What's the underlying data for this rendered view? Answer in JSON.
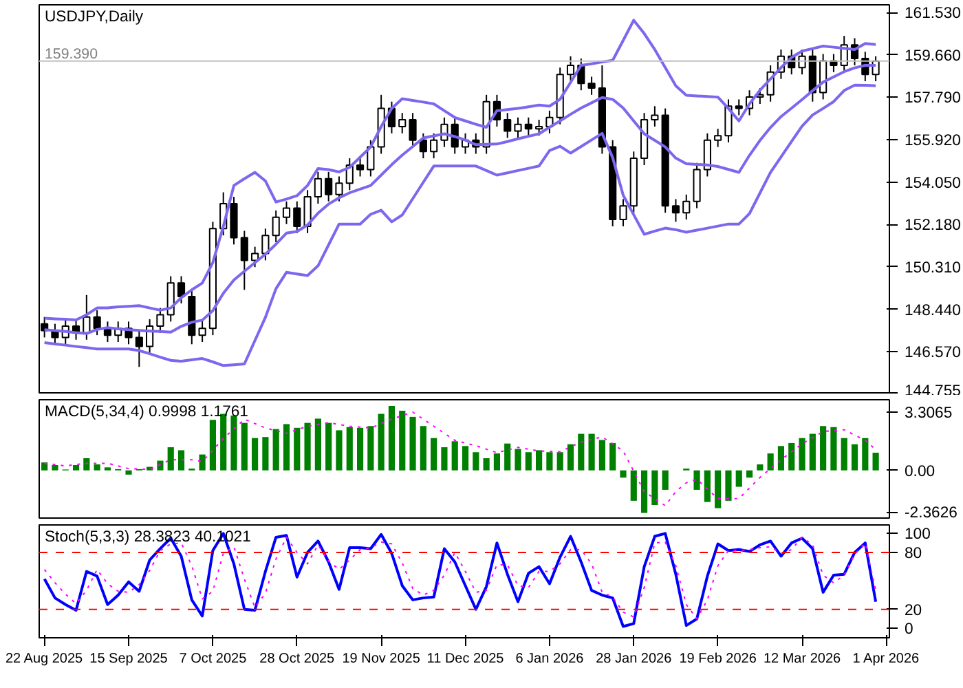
{
  "chart_data": [
    {
      "type": "candlestick",
      "title": "USDJPY,Daily",
      "tick_labels": "y",
      "ylim": [
        144.755,
        161.87
      ],
      "categories": [
        null,
        null,
        null,
        null,
        null,
        null,
        null,
        null,
        null,
        null,
        null,
        null,
        null,
        null,
        null,
        null,
        null,
        null,
        null,
        null,
        null,
        null,
        null,
        null,
        null,
        null,
        null,
        null,
        null,
        null,
        null,
        null,
        null,
        null,
        null,
        null,
        null,
        null,
        null,
        null,
        null,
        null,
        null,
        null,
        null,
        null,
        null,
        null,
        null,
        null,
        null,
        null,
        null,
        null,
        null,
        null,
        null,
        null,
        null,
        null,
        null,
        null,
        null,
        null,
        null,
        null,
        null,
        null,
        null,
        null,
        null,
        null,
        null,
        null,
        null,
        null,
        null,
        null,
        null,
        null,
        null
      ],
      "yticks": [
        {
          "value": 161.53,
          "label": "161.530"
        },
        {
          "value": 159.66,
          "label": "159.660"
        },
        {
          "value": 157.79,
          "label": "157.790"
        },
        {
          "value": 155.92,
          "label": "155.920"
        },
        {
          "value": 154.05,
          "label": "154.050"
        },
        {
          "value": 152.18,
          "label": "152.180"
        },
        {
          "value": 150.31,
          "label": "150.310"
        },
        {
          "value": 148.44,
          "label": "148.440"
        },
        {
          "value": 146.57,
          "label": "146.570"
        },
        {
          "value": 144.755,
          "label": "144.755"
        }
      ],
      "ohlc": [
        [
          147.8,
          148.1,
          147.2,
          147.5
        ],
        [
          147.5,
          147.8,
          146.9,
          147.2
        ],
        [
          147.2,
          148.0,
          146.9,
          147.7
        ],
        [
          147.7,
          148.0,
          147.1,
          147.4
        ],
        [
          147.4,
          149.07,
          147.1,
          148.1
        ],
        [
          148.1,
          148.4,
          147.3,
          147.6
        ],
        [
          147.6,
          147.9,
          147.0,
          147.3
        ],
        [
          147.3,
          147.9,
          147.0,
          147.6
        ],
        [
          147.6,
          147.9,
          146.9,
          147.2
        ],
        [
          147.2,
          147.5,
          145.9,
          146.8
        ],
        [
          146.8,
          148.0,
          146.5,
          147.7
        ],
        [
          147.7,
          148.5,
          147.4,
          148.2
        ],
        [
          148.2,
          149.9,
          147.9,
          149.6
        ],
        [
          149.6,
          149.9,
          148.7,
          149.0
        ],
        [
          149.0,
          149.3,
          146.9,
          147.3
        ],
        [
          147.3,
          148.0,
          147.0,
          147.6
        ],
        [
          147.6,
          152.3,
          147.3,
          152.0
        ],
        [
          152.0,
          153.6,
          151.7,
          153.1
        ],
        [
          153.1,
          153.4,
          151.3,
          151.6
        ],
        [
          151.6,
          151.9,
          149.3,
          150.6
        ],
        [
          150.6,
          151.2,
          150.3,
          150.9
        ],
        [
          150.9,
          152.0,
          150.6,
          151.7
        ],
        [
          151.7,
          152.8,
          151.4,
          152.5
        ],
        [
          152.5,
          153.2,
          152.2,
          152.9
        ],
        [
          152.9,
          153.2,
          151.8,
          152.1
        ],
        [
          152.1,
          153.7,
          151.8,
          153.4
        ],
        [
          153.4,
          154.5,
          153.1,
          154.2
        ],
        [
          154.2,
          154.5,
          153.2,
          153.5
        ],
        [
          153.5,
          154.3,
          153.2,
          154.0
        ],
        [
          154.0,
          155.1,
          153.7,
          154.8
        ],
        [
          154.8,
          155.1,
          154.3,
          154.6
        ],
        [
          154.6,
          155.9,
          154.3,
          155.6
        ],
        [
          155.6,
          157.9,
          155.3,
          157.3
        ],
        [
          157.3,
          157.6,
          156.2,
          156.5
        ],
        [
          156.5,
          157.1,
          156.2,
          156.8
        ],
        [
          156.8,
          157.1,
          155.6,
          155.9
        ],
        [
          155.9,
          156.2,
          155.1,
          155.4
        ],
        [
          155.4,
          156.2,
          155.1,
          155.9
        ],
        [
          155.9,
          156.9,
          155.6,
          156.6
        ],
        [
          156.6,
          156.9,
          155.3,
          155.6
        ],
        [
          155.6,
          156.2,
          155.3,
          155.9
        ],
        [
          155.9,
          156.2,
          155.3,
          155.6
        ],
        [
          155.6,
          157.9,
          155.3,
          157.6
        ],
        [
          157.6,
          157.9,
          156.5,
          156.8
        ],
        [
          156.8,
          157.1,
          156.0,
          156.3
        ],
        [
          156.3,
          156.9,
          156.0,
          156.6
        ],
        [
          156.6,
          156.9,
          156.1,
          156.4
        ],
        [
          156.4,
          156.8,
          156.1,
          156.5
        ],
        [
          156.5,
          157.2,
          156.2,
          156.9
        ],
        [
          156.9,
          159.1,
          156.6,
          158.8
        ],
        [
          158.8,
          159.6,
          158.5,
          159.2
        ],
        [
          159.2,
          159.5,
          158.1,
          158.4
        ],
        [
          158.4,
          158.7,
          157.9,
          158.2
        ],
        [
          158.2,
          159.2,
          155.3,
          155.6
        ],
        [
          155.6,
          155.9,
          152.1,
          152.4
        ],
        [
          152.4,
          153.3,
          152.1,
          153.0
        ],
        [
          153.0,
          155.4,
          152.7,
          155.1
        ],
        [
          155.1,
          157.1,
          154.8,
          156.8
        ],
        [
          156.8,
          157.4,
          156.5,
          157.0
        ],
        [
          157.0,
          157.3,
          152.7,
          153.0
        ],
        [
          153.0,
          153.3,
          152.3,
          152.7
        ],
        [
          152.7,
          153.5,
          152.4,
          153.2
        ],
        [
          153.2,
          154.9,
          152.9,
          154.6
        ],
        [
          154.6,
          156.2,
          154.3,
          155.9
        ],
        [
          155.9,
          156.4,
          155.6,
          156.1
        ],
        [
          156.1,
          157.7,
          155.8,
          157.4
        ],
        [
          157.4,
          157.7,
          157.0,
          157.3
        ],
        [
          157.3,
          158.1,
          157.0,
          157.8
        ],
        [
          157.8,
          158.2,
          157.5,
          157.9
        ],
        [
          157.9,
          159.2,
          157.6,
          158.9
        ],
        [
          158.9,
          159.9,
          158.6,
          159.6
        ],
        [
          159.6,
          159.9,
          158.8,
          159.1
        ],
        [
          159.1,
          159.9,
          158.8,
          159.6
        ],
        [
          159.6,
          159.9,
          157.6,
          158.0
        ],
        [
          158.0,
          159.7,
          157.7,
          159.4
        ],
        [
          159.4,
          159.7,
          158.9,
          159.2
        ],
        [
          159.2,
          160.5,
          158.9,
          160.1
        ],
        [
          160.1,
          160.4,
          159.2,
          159.5
        ],
        [
          159.5,
          159.8,
          158.5,
          158.8
        ],
        [
          158.8,
          159.6,
          158.5,
          159.39
        ],
        null
      ],
      "ref_lines": [
        {
          "axis": "y",
          "value": 159.39,
          "label": "159.390",
          "color": "#c0c0c0",
          "line_style": "solid"
        }
      ],
      "series": [
        {
          "type": "line",
          "color": "#7b68ee",
          "values": [
            148.05,
            148.02,
            148.0,
            147.97,
            148.2,
            148.5,
            148.5,
            148.55,
            148.57,
            148.6,
            148.5,
            148.4,
            148.5,
            148.95,
            149.3,
            149.6,
            150.5,
            152.1,
            153.9,
            154.2,
            154.48,
            154.1,
            153.17,
            153.3,
            153.45,
            153.9,
            154.65,
            154.6,
            154.5,
            154.7,
            155.15,
            155.6,
            156.5,
            157.3,
            157.73,
            157.65,
            157.58,
            157.5,
            157.2,
            156.9,
            156.75,
            156.6,
            156.47,
            157.2,
            157.25,
            157.3,
            157.37,
            157.45,
            157.4,
            157.7,
            158.45,
            159.2,
            159.27,
            159.35,
            159.42,
            160.3,
            161.19,
            160.6,
            159.9,
            159.1,
            158.3,
            157.88,
            157.85,
            157.83,
            157.8,
            157.3,
            156.75,
            157.5,
            158.1,
            158.6,
            159.1,
            159.55,
            159.83,
            159.94,
            160.05,
            160.0,
            159.95,
            159.9,
            160.16,
            160.12,
            null
          ]
        },
        {
          "type": "line",
          "color": "#7b68ee",
          "values": [
            147.54,
            147.5,
            147.46,
            147.41,
            147.37,
            147.55,
            147.63,
            147.58,
            147.54,
            147.51,
            147.48,
            147.46,
            147.43,
            147.69,
            147.87,
            147.96,
            148.38,
            149.15,
            149.73,
            150.12,
            150.5,
            150.87,
            151.31,
            151.8,
            151.87,
            152.16,
            152.68,
            153.08,
            153.36,
            153.58,
            153.74,
            153.9,
            154.36,
            154.82,
            155.24,
            155.62,
            156.0,
            156.09,
            156.18,
            156.06,
            155.9,
            155.7,
            155.72,
            155.73,
            155.84,
            155.96,
            156.07,
            156.18,
            156.47,
            156.75,
            157.04,
            157.32,
            157.55,
            157.78,
            157.7,
            157.32,
            156.75,
            156.18,
            155.89,
            155.6,
            155.11,
            154.86,
            154.83,
            154.81,
            154.74,
            154.61,
            154.48,
            155.23,
            155.89,
            156.46,
            156.94,
            157.31,
            157.69,
            158.08,
            158.46,
            158.69,
            158.92,
            159.09,
            159.2,
            159.2,
            null
          ]
        },
        {
          "type": "line",
          "color": "#7b68ee",
          "values": [
            146.97,
            146.91,
            146.86,
            146.8,
            146.75,
            146.69,
            146.69,
            146.69,
            146.69,
            146.62,
            146.48,
            146.33,
            146.19,
            146.15,
            146.21,
            146.27,
            146.12,
            145.96,
            145.99,
            146.03,
            147.06,
            148.09,
            149.35,
            150.07,
            150.0,
            149.93,
            150.36,
            151.28,
            152.2,
            152.2,
            152.2,
            152.63,
            152.81,
            152.3,
            152.6,
            153.32,
            154.04,
            154.76,
            154.76,
            154.76,
            154.76,
            154.76,
            154.56,
            154.36,
            154.46,
            154.56,
            154.66,
            154.76,
            155.44,
            155.63,
            155.33,
            155.62,
            155.91,
            156.2,
            155.13,
            153.47,
            152.61,
            151.75,
            151.89,
            152.02,
            151.95,
            151.84,
            151.93,
            152.02,
            152.11,
            152.2,
            152.2,
            152.66,
            153.57,
            154.48,
            155.16,
            155.84,
            156.52,
            157.01,
            157.3,
            157.6,
            158.09,
            158.33,
            158.32,
            158.3,
            null
          ]
        }
      ]
    },
    {
      "type": "bar",
      "title": "MACD(5,34,4) 0.9998 1.1761",
      "tick_labels": "y",
      "ylim": [
        -2.7,
        4.0
      ],
      "categories": [
        null,
        null,
        null,
        null,
        null,
        null,
        null,
        null,
        null,
        null,
        null,
        null,
        null,
        null,
        null,
        null,
        null,
        null,
        null,
        null,
        null,
        null,
        null,
        null,
        null,
        null,
        null,
        null,
        null,
        null,
        null,
        null,
        null,
        null,
        null,
        null,
        null,
        null,
        null,
        null,
        null,
        null,
        null,
        null,
        null,
        null,
        null,
        null,
        null,
        null,
        null,
        null,
        null,
        null,
        null,
        null,
        null,
        null,
        null,
        null,
        null,
        null,
        null,
        null,
        null,
        null,
        null,
        null,
        null,
        null,
        null,
        null,
        null,
        null,
        null,
        null,
        null,
        null,
        null,
        null,
        null
      ],
      "yticks": [
        {
          "value": 3.3065,
          "label": "3.3065"
        },
        {
          "value": 0,
          "label": "0.00"
        },
        {
          "value": -2.3626,
          "label": "-2.3626"
        }
      ],
      "series": [
        {
          "type": "bar",
          "color": "#008000",
          "values": [
            0.45,
            0.3,
            0.05,
            0.3,
            0.69,
            0.34,
            0.17,
            0.07,
            -0.24,
            0.07,
            0.2,
            0.55,
            1.31,
            1.14,
            0.1,
            0.9,
            2.86,
            3.2,
            3.1,
            2.69,
            1.83,
            1.89,
            2.34,
            2.62,
            2.41,
            2.69,
            2.93,
            2.69,
            2.27,
            2.45,
            2.41,
            2.51,
            3.2,
            3.65,
            3.38,
            3.03,
            2.51,
            1.83,
            1.31,
            1.65,
            1.38,
            1.03,
            0.69,
            0.96,
            1.52,
            1.21,
            1.03,
            1.14,
            1.03,
            1.03,
            1.48,
            2.07,
            2.07,
            1.72,
            1.55,
            -0.41,
            -1.72,
            -2.41,
            -1.96,
            -1.1,
            0.0,
            0.1,
            -1.1,
            -1.79,
            -2.14,
            -1.72,
            -0.93,
            -0.41,
            0.34,
            0.96,
            1.38,
            1.55,
            1.83,
            2.07,
            2.51,
            2.45,
            1.83,
            1.48,
            1.83,
            1.0,
            null
          ]
        },
        {
          "type": "line",
          "color": "#ff00ff",
          "line_style": "dotted",
          "values": [
            0.4,
            0.33,
            0.25,
            0.33,
            0.4,
            0.4,
            0.4,
            0.25,
            0.1,
            0.08,
            0.05,
            0.33,
            0.6,
            0.6,
            0.6,
            0.5,
            1.15,
            1.8,
            2.35,
            2.9,
            2.65,
            2.4,
            2.25,
            2.1,
            2.3,
            2.5,
            2.6,
            2.7,
            2.6,
            2.5,
            2.45,
            2.4,
            2.65,
            2.9,
            3.1,
            3.3,
            2.9,
            2.5,
            2.1,
            1.7,
            1.55,
            1.4,
            1.2,
            1.0,
            1.15,
            1.3,
            1.2,
            1.1,
            1.08,
            1.05,
            1.33,
            1.6,
            1.75,
            1.9,
            1.5,
            1.1,
            -0.05,
            -1.2,
            -1.6,
            -2.0,
            -1.2,
            -0.7,
            -0.5,
            -1.05,
            -1.6,
            -1.6,
            -1.6,
            -1.0,
            -0.4,
            0.1,
            0.6,
            1.05,
            1.5,
            1.85,
            2.2,
            2.25,
            2.3,
            2.0,
            1.7,
            1.18,
            null
          ]
        }
      ]
    },
    {
      "type": "line",
      "title": "Stoch(5,3,3) 28.3823 40.1021",
      "ylim": [
        -10,
        109
      ],
      "yticks": [
        100,
        80,
        20,
        0
      ],
      "categories": [
        "22 Aug 2025",
        null,
        null,
        null,
        null,
        null,
        null,
        null,
        "15 Sep 2025",
        null,
        null,
        null,
        null,
        null,
        null,
        null,
        "7 Oct 2025",
        null,
        null,
        null,
        null,
        null,
        null,
        null,
        "28 Oct 2025",
        null,
        null,
        null,
        null,
        null,
        null,
        null,
        "19 Nov 2025",
        null,
        null,
        null,
        null,
        null,
        null,
        null,
        "11 Dec 2025",
        null,
        null,
        null,
        null,
        null,
        null,
        null,
        "6 Jan 2026",
        null,
        null,
        null,
        null,
        null,
        null,
        null,
        "28 Jan 2026",
        null,
        null,
        null,
        null,
        null,
        null,
        null,
        "19 Feb 2026",
        null,
        null,
        null,
        null,
        null,
        null,
        null,
        "12 Mar 2026",
        null,
        null,
        null,
        null,
        null,
        null,
        null,
        "1 Apr 2026"
      ],
      "ref_lines": [
        {
          "axis": "y",
          "value": 80,
          "color": "#ff0000",
          "line_style": "dashed"
        },
        {
          "axis": "y",
          "value": 20,
          "color": "#ff0000",
          "line_style": "dashed"
        }
      ],
      "series": [
        {
          "type": "line",
          "color": "#0000ff",
          "line_style": "solid",
          "values": [
            52,
            32,
            25,
            19,
            60,
            55,
            25,
            35,
            49,
            39,
            72,
            84,
            95,
            76,
            30,
            13,
            82,
            100,
            68,
            20,
            19,
            60,
            96,
            98,
            54,
            80,
            92,
            70,
            41,
            85,
            85,
            84,
            99,
            79,
            45,
            30,
            32,
            33,
            84,
            70,
            45,
            20,
            44,
            90,
            57,
            28,
            58,
            65,
            47,
            75,
            97,
            70,
            40,
            35,
            32,
            2,
            5,
            65,
            97,
            100,
            57,
            3,
            10,
            55,
            89,
            82,
            83,
            81,
            88,
            92,
            76,
            90,
            95,
            84,
            38,
            56,
            57,
            80,
            90,
            28,
            null
          ]
        },
        {
          "type": "line",
          "color": "#ff00ff",
          "line_style": "dotted",
          "values": [
            62,
            48,
            36,
            26,
            40,
            62,
            47,
            39,
            38,
            46,
            61,
            82,
            89,
            90,
            66,
            31,
            39,
            79,
            86,
            52,
            22,
            37,
            73,
            96,
            80,
            68,
            88,
            71,
            62,
            72,
            83,
            85,
            91,
            89,
            69,
            42,
            35,
            40,
            56,
            80,
            60,
            38,
            40,
            67,
            67,
            45,
            43,
            60,
            60,
            68,
            83,
            83,
            68,
            38,
            33,
            17,
            12,
            43,
            90,
            91,
            66,
            25,
            10,
            30,
            66,
            82,
            82,
            83,
            85,
            86,
            79,
            83,
            96,
            88,
            56,
            48,
            56,
            78,
            90,
            40,
            null
          ]
        }
      ]
    }
  ]
}
